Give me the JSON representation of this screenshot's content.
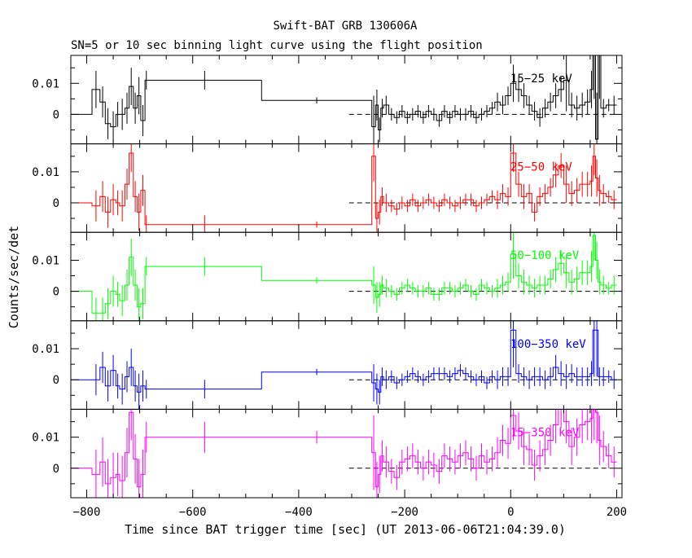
{
  "chart_data": {
    "type": "line",
    "title": "Swift-BAT GRB 130606A",
    "subtitle": "SN=5 or 10 sec binning light curve using the flight position",
    "xlabel": "Time since BAT trigger time [sec] (UT 2013-06-06T21:04:39.0)",
    "ylabel": "Counts/sec/det",
    "xlim": [
      -830,
      210
    ],
    "ylim": [
      -0.0095,
      0.019
    ],
    "x_ticks": [
      -800,
      -600,
      -400,
      -200,
      0,
      200
    ],
    "x_tick_labels": [
      "−800",
      "−600",
      "−400",
      "−200",
      "0",
      "200"
    ],
    "y_ticks": [
      0,
      0.01
    ],
    "y_tick_labels": [
      "0",
      "0.01"
    ],
    "zero_line_x": [
      -305,
      200
    ],
    "grid": false,
    "panels": [
      {
        "label": "15−25 keV",
        "color": "#000000",
        "edges": [
          -830,
          -790,
          -775,
          -765,
          -755,
          -745,
          -738,
          -728,
          -720,
          -712,
          -705,
          -698,
          -690,
          -685,
          -470,
          -262,
          -255,
          -250,
          -245,
          -240,
          -230,
          -220,
          -210,
          -200,
          -190,
          -180,
          -170,
          -160,
          -150,
          -140,
          -130,
          -120,
          -110,
          -100,
          -90,
          -80,
          -70,
          -60,
          -50,
          -40,
          -30,
          -20,
          -10,
          0,
          10,
          20,
          30,
          40,
          50,
          60,
          70,
          80,
          90,
          100,
          110,
          120,
          130,
          140,
          150,
          155,
          160,
          165,
          170,
          180,
          190,
          200
        ],
        "values": [
          0,
          0.008,
          0.004,
          -0.003,
          -0.004,
          0,
          0,
          0.002,
          0.009,
          0.002,
          0.006,
          -0.002,
          0.011,
          0.011,
          0.0045,
          -0.004,
          0.003,
          -0.005,
          0.002,
          0.003,
          0,
          -0.001,
          0.001,
          -0.001,
          0,
          0.001,
          -0.001,
          0.001,
          0,
          -0.002,
          0.001,
          -0.001,
          0.001,
          0,
          0,
          0.001,
          -0.001,
          0,
          0.001,
          0.002,
          0.004,
          0.003,
          0.006,
          0.01,
          0.008,
          0.006,
          0.003,
          0.001,
          -0.001,
          0.002,
          0.004,
          0.006,
          0.008,
          0.011,
          0.003,
          0.002,
          0.003,
          0.004,
          0.008,
          0.02,
          -0.008,
          0.02,
          0.002,
          0.003,
          0.003
        ],
        "errors": [
          0,
          0.006,
          0.005,
          0.005,
          0.005,
          0.004,
          0.005,
          0.005,
          0.006,
          0.005,
          0.006,
          0.005,
          0.003,
          0.003,
          0.001,
          0.01,
          0.005,
          0.004,
          0.003,
          0.003,
          0.002,
          0.002,
          0.002,
          0.002,
          0.002,
          0.002,
          0.002,
          0.002,
          0.002,
          0.002,
          0.002,
          0.002,
          0.002,
          0.002,
          0.002,
          0.002,
          0.002,
          0.002,
          0.002,
          0.002,
          0.003,
          0.003,
          0.003,
          0.006,
          0.004,
          0.004,
          0.003,
          0.003,
          0.003,
          0.003,
          0.003,
          0.004,
          0.004,
          0.01,
          0.004,
          0.004,
          0.004,
          0.004,
          0.006,
          0.015,
          0.015,
          0.015,
          0.003,
          0.002,
          0.003
        ]
      },
      {
        "label": "25−50 keV",
        "color": "#ff0000",
        "edges": [
          -830,
          -790,
          -775,
          -765,
          -755,
          -745,
          -738,
          -728,
          -720,
          -712,
          -705,
          -698,
          -690,
          -685,
          -470,
          -262,
          -255,
          -250,
          -245,
          -240,
          -230,
          -220,
          -210,
          -200,
          -190,
          -180,
          -170,
          -160,
          -150,
          -140,
          -130,
          -120,
          -110,
          -100,
          -90,
          -80,
          -70,
          -60,
          -50,
          -40,
          -30,
          -20,
          -10,
          0,
          10,
          20,
          30,
          40,
          50,
          60,
          70,
          80,
          90,
          100,
          110,
          120,
          130,
          140,
          150,
          155,
          160,
          165,
          170,
          180,
          190,
          200
        ],
        "values": [
          0,
          -0.001,
          0.002,
          -0.003,
          0.001,
          0,
          -0.001,
          0.006,
          0.016,
          0.002,
          -0.003,
          0.004,
          -0.007,
          -0.007,
          -0.007,
          0.015,
          -0.005,
          -0.003,
          0.002,
          0,
          -0.001,
          -0.002,
          0,
          -0.001,
          0.001,
          -0.001,
          0,
          0.001,
          0,
          -0.001,
          0.001,
          0,
          -0.001,
          0,
          0.001,
          0.001,
          -0.001,
          0,
          0.001,
          0.002,
          0.001,
          0.003,
          0.002,
          0.016,
          0.006,
          0.002,
          0.003,
          -0.003,
          0.002,
          0.003,
          0.005,
          0.009,
          0.012,
          0.006,
          0.003,
          0.004,
          0.006,
          0.006,
          0.007,
          0.015,
          0.008,
          0.004,
          0.003,
          0.002,
          0.001
        ],
        "errors": [
          0,
          0.005,
          0.005,
          0.005,
          0.005,
          0.004,
          0.005,
          0.005,
          0.006,
          0.005,
          0.006,
          0.005,
          0.003,
          0.003,
          0.001,
          0.008,
          0.005,
          0.004,
          0.003,
          0.003,
          0.002,
          0.002,
          0.002,
          0.002,
          0.002,
          0.002,
          0.002,
          0.002,
          0.002,
          0.002,
          0.002,
          0.002,
          0.002,
          0.002,
          0.002,
          0.002,
          0.002,
          0.002,
          0.002,
          0.002,
          0.003,
          0.003,
          0.003,
          0.006,
          0.004,
          0.004,
          0.003,
          0.003,
          0.003,
          0.003,
          0.003,
          0.004,
          0.004,
          0.006,
          0.004,
          0.004,
          0.004,
          0.004,
          0.005,
          0.006,
          0.006,
          0.005,
          0.003,
          0.002,
          0.003
        ]
      },
      {
        "label": "50−100 keV",
        "color": "#00ff00",
        "edges": [
          -830,
          -790,
          -775,
          -765,
          -755,
          -745,
          -738,
          -728,
          -720,
          -712,
          -705,
          -698,
          -690,
          -685,
          -470,
          -262,
          -255,
          -250,
          -245,
          -240,
          -230,
          -220,
          -210,
          -200,
          -190,
          -180,
          -170,
          -160,
          -150,
          -140,
          -130,
          -120,
          -110,
          -100,
          -90,
          -80,
          -70,
          -60,
          -50,
          -40,
          -30,
          -20,
          -10,
          0,
          10,
          20,
          30,
          40,
          50,
          60,
          70,
          80,
          90,
          100,
          110,
          120,
          130,
          140,
          150,
          155,
          160,
          165,
          170,
          180,
          190,
          200
        ],
        "values": [
          0,
          -0.007,
          -0.007,
          -0.004,
          0,
          -0.001,
          -0.003,
          0.002,
          0.011,
          0.002,
          -0.005,
          -0.004,
          0.008,
          0.008,
          0.0035,
          0.002,
          -0.002,
          -0.001,
          0.002,
          0.001,
          0,
          -0.001,
          0.001,
          0.002,
          0.001,
          0,
          0,
          0.001,
          -0.001,
          -0.001,
          0.001,
          0.001,
          0,
          0.001,
          0.002,
          0,
          -0.001,
          0.002,
          0.001,
          0,
          0.001,
          0.002,
          0.003,
          0.012,
          0.005,
          0.003,
          0.002,
          0.001,
          0.002,
          0.002,
          0.004,
          0.007,
          0.009,
          0.006,
          0.003,
          0.004,
          0.006,
          0.006,
          0.008,
          0.018,
          0.01,
          0.003,
          0.002,
          0.001,
          0.002
        ],
        "errors": [
          0,
          0.005,
          0.005,
          0.005,
          0.005,
          0.004,
          0.005,
          0.005,
          0.006,
          0.005,
          0.006,
          0.005,
          0.003,
          0.003,
          0.001,
          0.006,
          0.005,
          0.004,
          0.003,
          0.003,
          0.002,
          0.002,
          0.002,
          0.002,
          0.002,
          0.002,
          0.002,
          0.002,
          0.002,
          0.002,
          0.002,
          0.002,
          0.002,
          0.002,
          0.002,
          0.002,
          0.002,
          0.002,
          0.002,
          0.002,
          0.003,
          0.003,
          0.003,
          0.008,
          0.004,
          0.004,
          0.003,
          0.003,
          0.003,
          0.003,
          0.003,
          0.004,
          0.004,
          0.005,
          0.004,
          0.004,
          0.004,
          0.004,
          0.005,
          0.008,
          0.006,
          0.004,
          0.003,
          0.002,
          0.003
        ]
      },
      {
        "label": "100−350 keV",
        "color": "#0000ff",
        "edges": [
          -830,
          -790,
          -775,
          -765,
          -755,
          -745,
          -738,
          -728,
          -720,
          -712,
          -705,
          -698,
          -690,
          -685,
          -470,
          -262,
          -255,
          -250,
          -245,
          -240,
          -230,
          -220,
          -210,
          -200,
          -190,
          -180,
          -170,
          -160,
          -150,
          -140,
          -130,
          -120,
          -110,
          -100,
          -90,
          -80,
          -70,
          -60,
          -50,
          -40,
          -30,
          -20,
          -10,
          0,
          10,
          20,
          30,
          40,
          50,
          60,
          70,
          80,
          90,
          100,
          110,
          120,
          130,
          140,
          150,
          155,
          160,
          165,
          170,
          180,
          190,
          200
        ],
        "values": [
          0,
          0,
          0.004,
          -0.002,
          0.003,
          -0.002,
          -0.003,
          0.001,
          0.004,
          -0.002,
          -0.004,
          -0.002,
          -0.003,
          -0.003,
          0.0025,
          -0.001,
          -0.003,
          -0.004,
          0.001,
          0,
          0.001,
          -0.001,
          0,
          0.001,
          0.002,
          0.001,
          0,
          0.001,
          0.002,
          0.002,
          0.002,
          0.001,
          0.002,
          0.003,
          0.002,
          0.001,
          0,
          0.001,
          -0.001,
          0.001,
          0,
          0.001,
          0.001,
          0.016,
          0.002,
          0.001,
          0,
          0.001,
          0.001,
          0,
          0.001,
          0.004,
          0.002,
          0.001,
          0.002,
          0.001,
          0.001,
          0.001,
          0.002,
          0.016,
          0.016,
          0.001,
          0.001,
          0.001,
          0
        ],
        "errors": [
          0,
          0.005,
          0.005,
          0.005,
          0.005,
          0.004,
          0.005,
          0.005,
          0.006,
          0.005,
          0.006,
          0.005,
          0.003,
          0.003,
          0.001,
          0.006,
          0.005,
          0.004,
          0.003,
          0.003,
          0.002,
          0.002,
          0.002,
          0.002,
          0.002,
          0.002,
          0.002,
          0.002,
          0.002,
          0.002,
          0.002,
          0.002,
          0.002,
          0.002,
          0.002,
          0.002,
          0.002,
          0.002,
          0.002,
          0.002,
          0.003,
          0.003,
          0.003,
          0.012,
          0.003,
          0.003,
          0.003,
          0.003,
          0.003,
          0.003,
          0.003,
          0.004,
          0.004,
          0.004,
          0.003,
          0.003,
          0.003,
          0.003,
          0.004,
          0.015,
          0.015,
          0.003,
          0.003,
          0.002,
          0.003
        ]
      },
      {
        "label": "15−350 keV",
        "color": "#ff00ff",
        "edges": [
          -830,
          -790,
          -775,
          -765,
          -755,
          -745,
          -738,
          -728,
          -720,
          -712,
          -705,
          -698,
          -690,
          -685,
          -470,
          -262,
          -255,
          -250,
          -245,
          -240,
          -230,
          -220,
          -210,
          -200,
          -190,
          -180,
          -170,
          -160,
          -150,
          -140,
          -130,
          -120,
          -110,
          -100,
          -90,
          -80,
          -70,
          -60,
          -50,
          -40,
          -30,
          -20,
          -10,
          0,
          10,
          20,
          30,
          40,
          50,
          60,
          70,
          80,
          90,
          100,
          110,
          120,
          130,
          140,
          150,
          155,
          160,
          165,
          170,
          180,
          190,
          200
        ],
        "values": [
          0,
          -0.002,
          0.002,
          -0.005,
          -0.003,
          -0.002,
          -0.004,
          0.005,
          0.018,
          0.003,
          -0.006,
          -0.002,
          0.01,
          0.01,
          0.01,
          0.005,
          -0.006,
          -0.002,
          0.004,
          0.002,
          -0.001,
          -0.003,
          0.002,
          0.003,
          0.004,
          0.002,
          0,
          0.002,
          0.001,
          -0.001,
          0.004,
          0.003,
          0.002,
          0.004,
          0.005,
          0.003,
          0,
          0.004,
          0.002,
          0.003,
          0.005,
          0.009,
          0.008,
          0.017,
          0.012,
          0.007,
          0.006,
          0.001,
          0.004,
          0.006,
          0.009,
          0.014,
          0.019,
          0.015,
          0.007,
          0.01,
          0.014,
          0.015,
          0.016,
          0.019,
          0.018,
          0.009,
          0.007,
          0.004,
          0.002
        ],
        "errors": [
          0,
          0.008,
          0.008,
          0.008,
          0.008,
          0.007,
          0.008,
          0.008,
          0.009,
          0.008,
          0.009,
          0.008,
          0.005,
          0.005,
          0.002,
          0.012,
          0.008,
          0.006,
          0.005,
          0.005,
          0.004,
          0.004,
          0.004,
          0.004,
          0.004,
          0.004,
          0.004,
          0.004,
          0.004,
          0.004,
          0.004,
          0.004,
          0.004,
          0.004,
          0.004,
          0.004,
          0.004,
          0.004,
          0.004,
          0.004,
          0.005,
          0.005,
          0.005,
          0.008,
          0.006,
          0.006,
          0.005,
          0.005,
          0.005,
          0.005,
          0.005,
          0.006,
          0.006,
          0.007,
          0.006,
          0.006,
          0.006,
          0.006,
          0.008,
          0.01,
          0.01,
          0.008,
          0.005,
          0.004,
          0.005
        ]
      }
    ]
  }
}
